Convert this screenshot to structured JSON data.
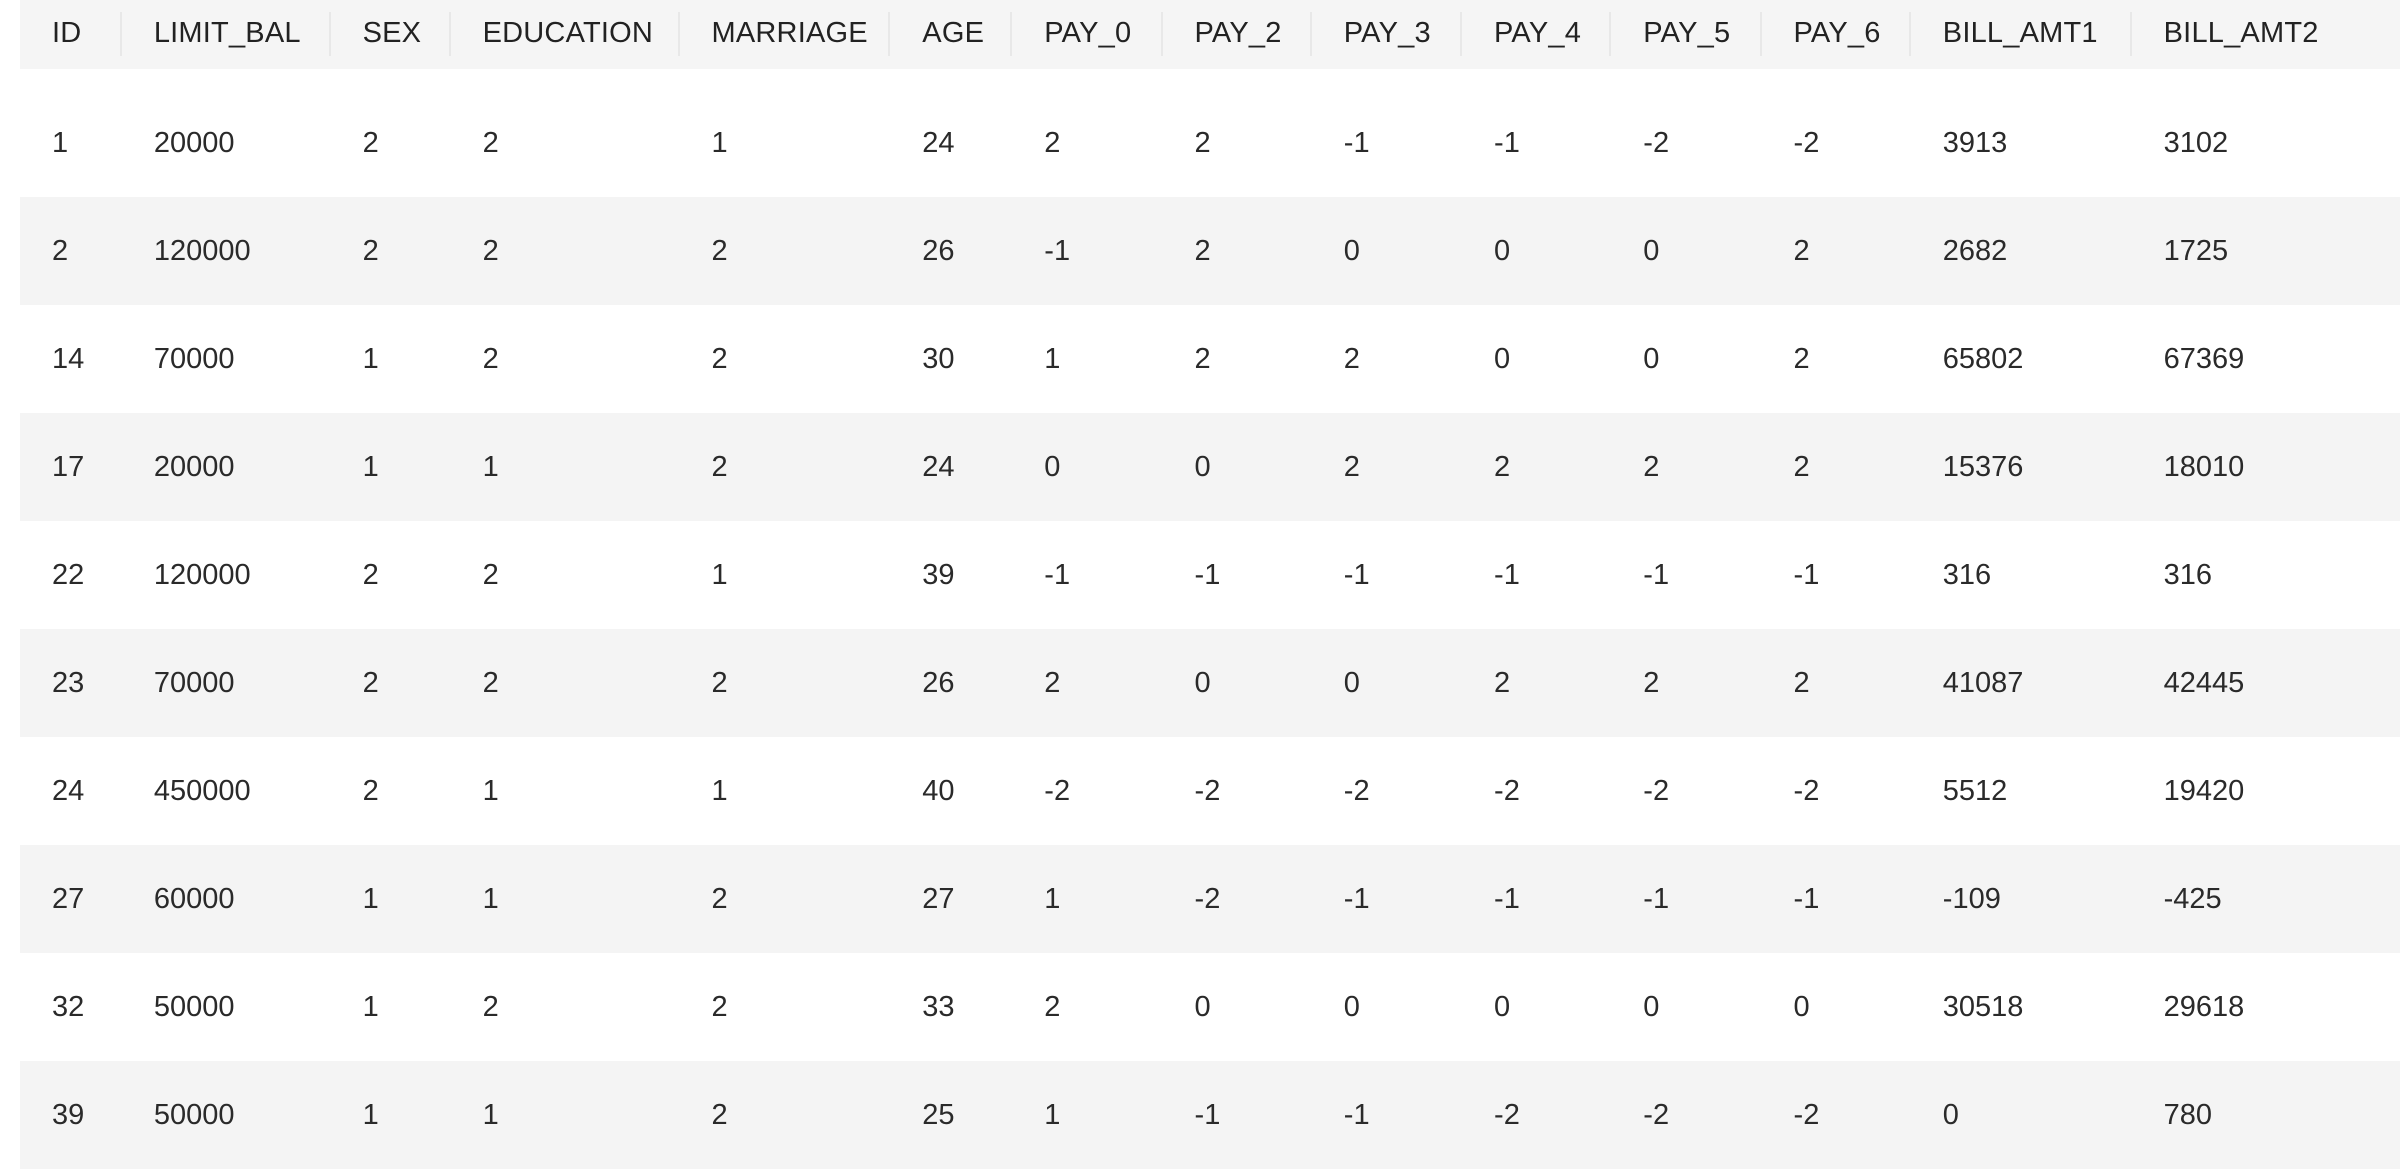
{
  "table": {
    "columns": [
      "ID",
      "LIMIT_BAL",
      "SEX",
      "EDUCATION",
      "MARRIAGE",
      "AGE",
      "PAY_0",
      "PAY_2",
      "PAY_3",
      "PAY_4",
      "PAY_5",
      "PAY_6",
      "BILL_AMT1",
      "BILL_AMT2"
    ],
    "rows": [
      [
        "1",
        "20000",
        "2",
        "2",
        "1",
        "24",
        "2",
        "2",
        "-1",
        "-1",
        "-2",
        "-2",
        "3913",
        "3102"
      ],
      [
        "2",
        "120000",
        "2",
        "2",
        "2",
        "26",
        "-1",
        "2",
        "0",
        "0",
        "0",
        "2",
        "2682",
        "1725"
      ],
      [
        "14",
        "70000",
        "1",
        "2",
        "2",
        "30",
        "1",
        "2",
        "2",
        "0",
        "0",
        "2",
        "65802",
        "67369"
      ],
      [
        "17",
        "20000",
        "1",
        "1",
        "2",
        "24",
        "0",
        "0",
        "2",
        "2",
        "2",
        "2",
        "15376",
        "18010"
      ],
      [
        "22",
        "120000",
        "2",
        "2",
        "1",
        "39",
        "-1",
        "-1",
        "-1",
        "-1",
        "-1",
        "-1",
        "316",
        "316"
      ],
      [
        "23",
        "70000",
        "2",
        "2",
        "2",
        "26",
        "2",
        "0",
        "0",
        "2",
        "2",
        "2",
        "41087",
        "42445"
      ],
      [
        "24",
        "450000",
        "2",
        "1",
        "1",
        "40",
        "-2",
        "-2",
        "-2",
        "-2",
        "-2",
        "-2",
        "5512",
        "19420"
      ],
      [
        "27",
        "60000",
        "1",
        "1",
        "2",
        "27",
        "1",
        "-2",
        "-1",
        "-1",
        "-1",
        "-1",
        "-109",
        "-425"
      ],
      [
        "32",
        "50000",
        "1",
        "2",
        "2",
        "33",
        "2",
        "0",
        "0",
        "0",
        "0",
        "0",
        "30518",
        "29618"
      ],
      [
        "39",
        "50000",
        "1",
        "1",
        "2",
        "25",
        "1",
        "-1",
        "-1",
        "-2",
        "-2",
        "-2",
        "0",
        "780"
      ]
    ]
  }
}
